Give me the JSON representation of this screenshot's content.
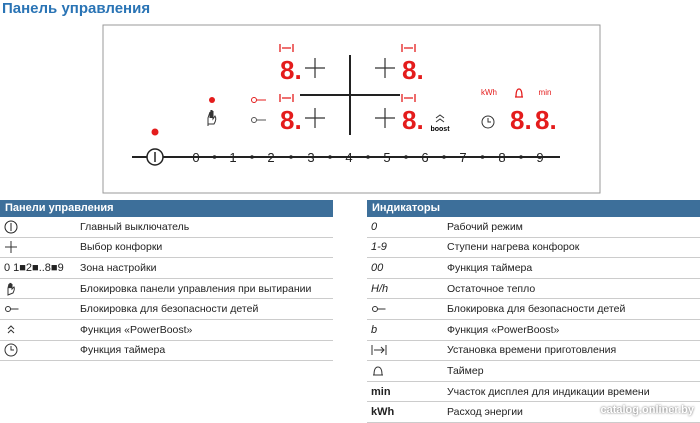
{
  "header": {
    "title": "Панель управления"
  },
  "panel": {
    "scale": [
      "0",
      "1",
      "2",
      "3",
      "4",
      "5",
      "6",
      "7",
      "8",
      "9"
    ],
    "displays": [
      "8.",
      "8.",
      "8.",
      "8.",
      "8.",
      "8."
    ],
    "boost": "boost",
    "kwh": "kWh",
    "min": "min"
  },
  "table1": {
    "title": "Панели управления",
    "rows": [
      {
        "label": "Главный выключатель"
      },
      {
        "label": "Выбор конфорки"
      },
      {
        "symbol": "0 1■2■..8■9",
        "label": "Зона настройки"
      },
      {
        "label": "Блокировка панели управления при вытирании"
      },
      {
        "label": "Блокировка для безопасности детей"
      },
      {
        "label": "Функция «PowerBoost»"
      },
      {
        "label": "Функция таймера"
      }
    ]
  },
  "table2": {
    "title": "Индикаторы",
    "rows": [
      {
        "symbol": "0",
        "label": "Рабочий режим"
      },
      {
        "symbol": "1-9",
        "label": "Ступени нагрева конфорок"
      },
      {
        "symbol": "00",
        "label": "Функция таймера"
      },
      {
        "symbol": "H/h",
        "label": "Остаточное тепло"
      },
      {
        "label": "Блокировка для безопасности детей"
      },
      {
        "symbol": "b",
        "label": "Функция «PowerBoost»"
      },
      {
        "label": "Установка времени приготовления"
      },
      {
        "label": "Таймер"
      },
      {
        "symbol": "min",
        "label": "Участок дисплея для индикации времени"
      },
      {
        "symbol": "kWh",
        "label": "Расход энергии"
      }
    ]
  },
  "watermark": "catalog.onliner.by"
}
